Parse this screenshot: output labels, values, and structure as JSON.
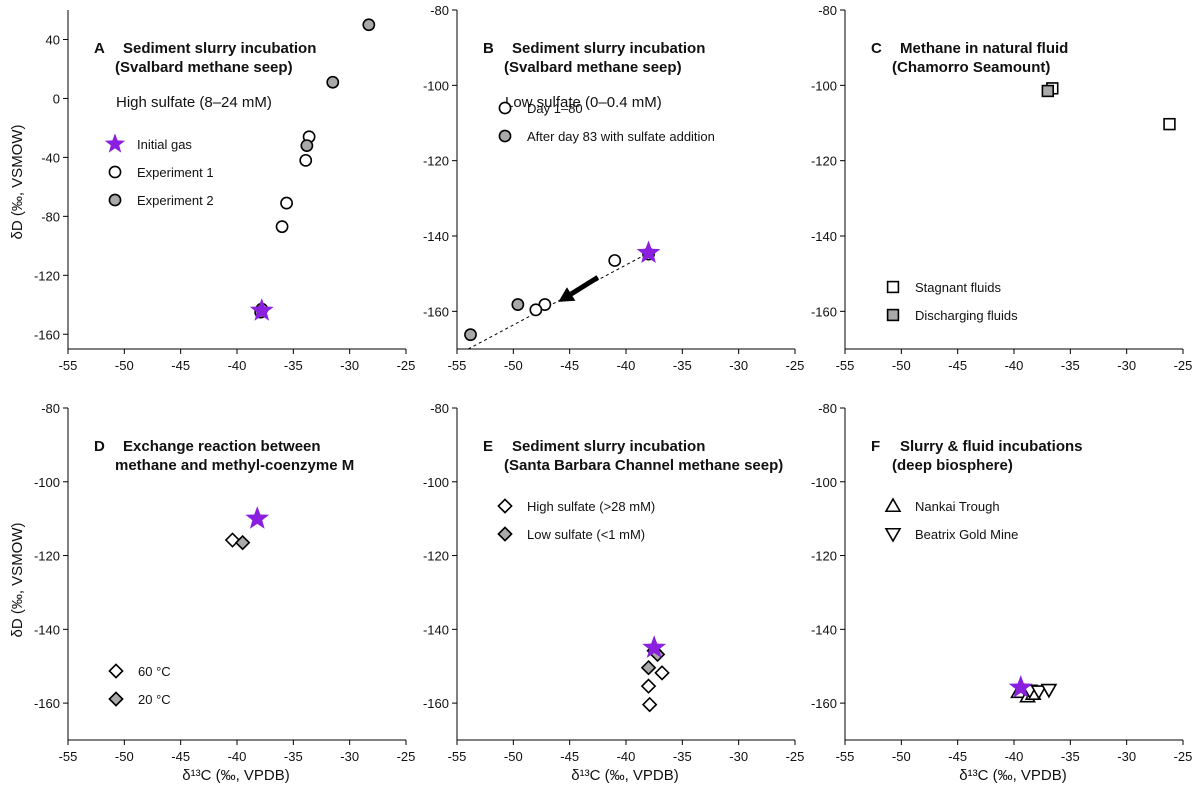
{
  "figure": {
    "ylabel": "δD  (‰, VSMOW)",
    "xlabel": "δ¹³C  (‰, VPDB)"
  },
  "colors": {
    "purple": "#8a1fe0",
    "gray": "#a9a9a9",
    "white": "#ffffff",
    "black": "#000000"
  },
  "chart_data": [
    {
      "type": "scatter",
      "letter": "A",
      "title": [
        "Sediment slurry incubation",
        "(Svalbard methane seep)"
      ],
      "note": "High sulfate (8–24 mM)",
      "xlim": [
        -55,
        -25
      ],
      "ylim": [
        -170,
        60
      ],
      "xticks": [
        -55,
        -50,
        -45,
        -40,
        -35,
        -30,
        -25
      ],
      "yticks": [
        40,
        0,
        -40,
        -80,
        -120,
        -160
      ],
      "legend": [
        {
          "label": "Initial gas",
          "marker": "star",
          "fill": "#8a1fe0"
        },
        {
          "label": "Experiment 1",
          "marker": "circle",
          "fill": "#ffffff"
        },
        {
          "label": "Experiment 2",
          "marker": "circle",
          "fill": "#a9a9a9"
        }
      ],
      "series": [
        {
          "name": "Experiment 1",
          "marker": "circle",
          "fill": "#ffffff",
          "points": [
            [
              -33.6,
              -26
            ],
            [
              -33.9,
              -42
            ],
            [
              -35.6,
              -71
            ],
            [
              -36.0,
              -87
            ],
            [
              -37.8,
              -143
            ]
          ]
        },
        {
          "name": "Experiment 2",
          "marker": "circle",
          "fill": "#a9a9a9",
          "points": [
            [
              -28.3,
              50
            ],
            [
              -31.5,
              11
            ],
            [
              -33.8,
              -32
            ],
            [
              -37.9,
              -145
            ]
          ]
        },
        {
          "name": "Initial gas",
          "marker": "star",
          "fill": "#8a1fe0",
          "points": [
            [
              -37.8,
              -144
            ]
          ]
        }
      ]
    },
    {
      "type": "scatter",
      "letter": "B",
      "title": [
        "Sediment slurry incubation",
        "(Svalbard methane seep)"
      ],
      "note": "Low sulfate (0–0.4 mM)",
      "xlim": [
        -55,
        -25
      ],
      "ylim": [
        -170,
        -80
      ],
      "xticks": [
        -55,
        -50,
        -45,
        -40,
        -35,
        -30,
        -25
      ],
      "yticks": [
        -80,
        -100,
        -120,
        -140,
        -160
      ],
      "legend": [
        {
          "label": "Day 1–80",
          "marker": "circle",
          "fill": "#ffffff"
        },
        {
          "label": "After day 83 with sulfate addition",
          "marker": "circle",
          "fill": "#a9a9a9"
        }
      ],
      "dashed_line": [
        [
          -54,
          -170
        ],
        [
          -38,
          -144.5
        ]
      ],
      "arrow": [
        [
          -42.5,
          -151
        ],
        [
          -46.0,
          -157.5
        ]
      ],
      "series": [
        {
          "name": "Initial gas",
          "marker": "star",
          "fill": "#8a1fe0",
          "points": [
            [
              -38.0,
              -144.5
            ]
          ]
        },
        {
          "name": "Day 1–80",
          "marker": "circle",
          "fill": "#ffffff",
          "points": [
            [
              -38.0,
              -144.8
            ],
            [
              -41.0,
              -146.5
            ],
            [
              -47.2,
              -158.2
            ],
            [
              -48.0,
              -159.6
            ]
          ]
        },
        {
          "name": "After day 83 with sulfate addition",
          "marker": "circle",
          "fill": "#a9a9a9",
          "points": [
            [
              -49.6,
              -158.2
            ],
            [
              -53.8,
              -166.2
            ]
          ]
        }
      ]
    },
    {
      "type": "scatter",
      "letter": "C",
      "title": [
        "Methane in natural fluid",
        "(Chamorro Seamount)"
      ],
      "note": "",
      "xlim": [
        -55,
        -25
      ],
      "ylim": [
        -170,
        -80
      ],
      "xticks": [
        -55,
        -50,
        -45,
        -40,
        -35,
        -30,
        -25
      ],
      "yticks": [
        -80,
        -100,
        -120,
        -140,
        -160
      ],
      "legend": [
        {
          "label": "Stagnant fluids",
          "marker": "square",
          "fill": "#ffffff"
        },
        {
          "label": "Discharging fluids",
          "marker": "square",
          "fill": "#a9a9a9"
        }
      ],
      "series": [
        {
          "name": "Stagnant fluids",
          "marker": "square",
          "fill": "#ffffff",
          "points": [
            [
              -36.6,
              -100.8
            ],
            [
              -26.2,
              -110.3
            ]
          ]
        },
        {
          "name": "Discharging fluids",
          "marker": "square",
          "fill": "#a9a9a9",
          "points": [
            [
              -37.0,
              -101.5
            ]
          ]
        }
      ]
    },
    {
      "type": "scatter",
      "letter": "D",
      "title": [
        "Exchange reaction between",
        "methane and methyl-coenzyme M"
      ],
      "note": "",
      "xlim": [
        -55,
        -25
      ],
      "ylim": [
        -170,
        -80
      ],
      "xticks": [
        -55,
        -50,
        -45,
        -40,
        -35,
        -30,
        -25
      ],
      "yticks": [
        -80,
        -100,
        -120,
        -140,
        -160
      ],
      "legend": [
        {
          "label": "60 °C",
          "marker": "diamond",
          "fill": "#ffffff"
        },
        {
          "label": "20 °C",
          "marker": "diamond",
          "fill": "#a9a9a9"
        }
      ],
      "series": [
        {
          "name": "Initial gas",
          "marker": "star",
          "fill": "#8a1fe0",
          "points": [
            [
              -38.2,
              -110.0
            ]
          ]
        },
        {
          "name": "60 °C",
          "marker": "diamond",
          "fill": "#ffffff",
          "points": [
            [
              -40.4,
              -115.8
            ]
          ]
        },
        {
          "name": "20 °C",
          "marker": "diamond",
          "fill": "#a9a9a9",
          "points": [
            [
              -39.5,
              -116.5
            ]
          ]
        }
      ]
    },
    {
      "type": "scatter",
      "letter": "E",
      "title": [
        "Sediment slurry incubation",
        "(Santa Barbara Channel methane seep)"
      ],
      "note": "",
      "xlim": [
        -55,
        -25
      ],
      "ylim": [
        -170,
        -80
      ],
      "xticks": [
        -55,
        -50,
        -45,
        -40,
        -35,
        -30,
        -25
      ],
      "yticks": [
        -80,
        -100,
        -120,
        -140,
        -160
      ],
      "legend": [
        {
          "label": "High sulfate (>28 mM)",
          "marker": "diamond",
          "fill": "#ffffff"
        },
        {
          "label": "Low sulfate (<1 mM)",
          "marker": "diamond",
          "fill": "#a9a9a9"
        }
      ],
      "series": [
        {
          "name": "Initial gas",
          "marker": "star",
          "fill": "#8a1fe0",
          "points": [
            [
              -37.5,
              -145.0
            ]
          ]
        },
        {
          "name": "High sulfate (>28 mM)",
          "marker": "diamond",
          "fill": "#ffffff",
          "points": [
            [
              -37.5,
              -145.8
            ],
            [
              -36.8,
              -151.8
            ],
            [
              -38.0,
              -155.4
            ],
            [
              -37.9,
              -160.4
            ]
          ]
        },
        {
          "name": "Low sulfate (<1 mM)",
          "marker": "diamond",
          "fill": "#a9a9a9",
          "points": [
            [
              -37.2,
              -146.8
            ],
            [
              -38.0,
              -150.4
            ]
          ]
        }
      ]
    },
    {
      "type": "scatter",
      "letter": "F",
      "title": [
        "Slurry & fluid incubations",
        "(deep biosphere)"
      ],
      "note": "",
      "xlim": [
        -55,
        -25
      ],
      "ylim": [
        -170,
        -80
      ],
      "xticks": [
        -55,
        -50,
        -45,
        -40,
        -35,
        -30,
        -25
      ],
      "yticks": [
        -80,
        -100,
        -120,
        -140,
        -160
      ],
      "legend": [
        {
          "label": "Nankai Trough",
          "marker": "triangle-up",
          "fill": "#ffffff"
        },
        {
          "label": "Beatrix Gold Mine",
          "marker": "triangle-down",
          "fill": "#ffffff"
        }
      ],
      "series": [
        {
          "name": "Initial gas",
          "marker": "star",
          "fill": "#8a1fe0",
          "points": [
            [
              -39.4,
              -155.8
            ]
          ]
        },
        {
          "name": "Nankai Trough",
          "marker": "triangle-up",
          "fill": "#ffffff",
          "points": [
            [
              -39.6,
              -157.0
            ],
            [
              -38.8,
              -158.2
            ],
            [
              -38.3,
              -157.5
            ]
          ]
        },
        {
          "name": "Beatrix Gold Mine",
          "marker": "triangle-down",
          "fill": "#ffffff",
          "points": [
            [
              -38.6,
              -156.6
            ],
            [
              -37.8,
              -156.8
            ],
            [
              -36.9,
              -156.4
            ]
          ]
        }
      ]
    }
  ]
}
